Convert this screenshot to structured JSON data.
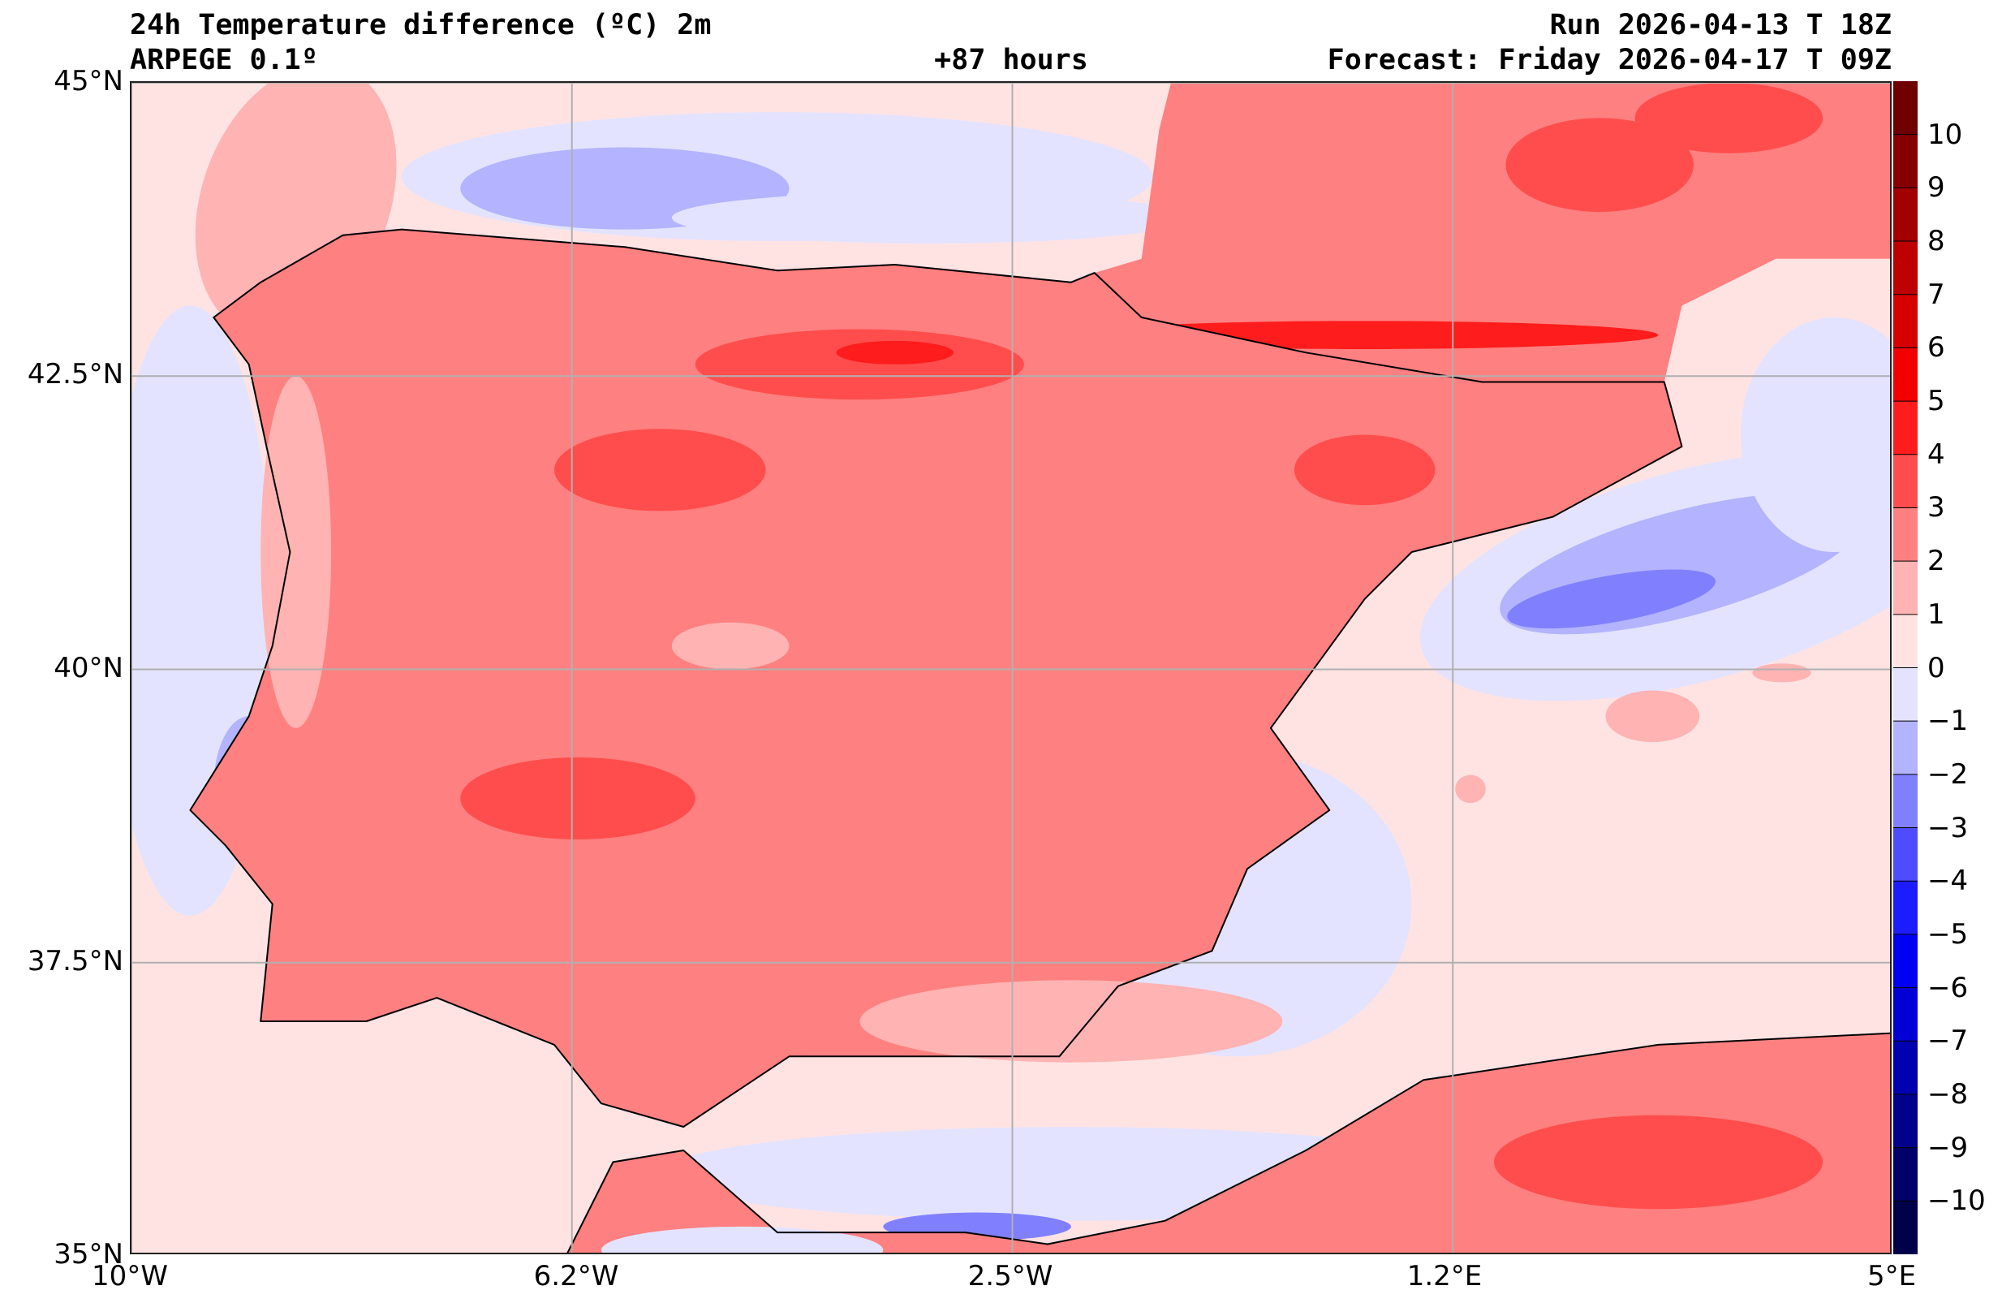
{
  "header": {
    "title": "24h Temperature difference (ºC) 2m",
    "model": "ARPEGE 0.1º",
    "lead_time": "+87 hours",
    "run": "Run 2026-04-13 T 18Z",
    "forecast": "Forecast: Friday 2026-04-17 T 09Z"
  },
  "axes": {
    "lat_labels": [
      "45°N",
      "42.5°N",
      "40°N",
      "37.5°N",
      "35°N"
    ],
    "lon_labels": [
      "10°W",
      "6.2°W",
      "2.5°W",
      "1.2°E",
      "5°E"
    ]
  },
  "colorbar": {
    "ticks": [
      "10",
      "9",
      "8",
      "7",
      "6",
      "5",
      "4",
      "3",
      "2",
      "1",
      "0",
      "−1",
      "−2",
      "−3",
      "−4",
      "−5",
      "−6",
      "−7",
      "−8",
      "−9",
      "−10"
    ],
    "colors": [
      "#6e0000",
      "#870000",
      "#a30000",
      "#bd0000",
      "#d60000",
      "#f20000",
      "#ff1c1c",
      "#ff4d4d",
      "#ff8080",
      "#ffb3b3",
      "#ffe3e3",
      "#e3e3ff",
      "#b3b3ff",
      "#8080ff",
      "#4d4dff",
      "#1c1cff",
      "#0000f2",
      "#0000d6",
      "#0000b0",
      "#00008a",
      "#000068",
      "#00004a"
    ]
  },
  "map": {
    "extent": {
      "lon": [
        -10,
        5
      ],
      "lat": [
        35,
        45
      ]
    },
    "colors": {
      "sea_pos": "#ffe3e3",
      "neg1": "#e3e3ff",
      "neg2": "#b3b3ff",
      "neg3": "#8080ff",
      "pos1": "#ffb3b3",
      "pos2": "#ff8080",
      "pos3": "#ff4d4d",
      "pos4": "#ff1c1c"
    }
  }
}
